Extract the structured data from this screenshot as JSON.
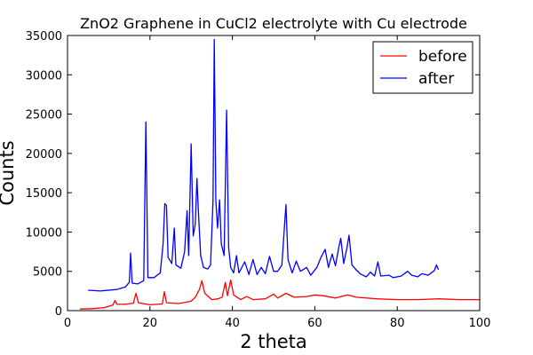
{
  "chart_data": {
    "type": "line",
    "title": "ZnO2 Graphene in CuCl2 electrolyte with Cu electrode",
    "xlabel": "2 theta",
    "ylabel": "Counts",
    "xlim": [
      0,
      100
    ],
    "ylim": [
      0,
      35000
    ],
    "x_ticks": [
      0,
      20,
      40,
      60,
      80,
      100
    ],
    "y_ticks": [
      0,
      5000,
      10000,
      15000,
      20000,
      25000,
      30000,
      35000
    ],
    "grid": false,
    "legend": "top-right",
    "series": [
      {
        "name": "before",
        "color": "#ff0000",
        "points": [
          [
            3,
            200
          ],
          [
            6,
            250
          ],
          [
            9,
            400
          ],
          [
            11,
            700
          ],
          [
            11.5,
            1300
          ],
          [
            12,
            800
          ],
          [
            14,
            800
          ],
          [
            16,
            950
          ],
          [
            16.6,
            2200
          ],
          [
            17.2,
            1000
          ],
          [
            20,
            750
          ],
          [
            23,
            850
          ],
          [
            23.5,
            2400
          ],
          [
            24,
            1000
          ],
          [
            27,
            900
          ],
          [
            30,
            1200
          ],
          [
            31,
            1700
          ],
          [
            32,
            2700
          ],
          [
            32.6,
            3800
          ],
          [
            33.3,
            2200
          ],
          [
            35,
            1400
          ],
          [
            36.5,
            1500
          ],
          [
            37.5,
            1700
          ],
          [
            38.3,
            3600
          ],
          [
            38.8,
            1900
          ],
          [
            39.6,
            3900
          ],
          [
            40.3,
            2000
          ],
          [
            42,
            1400
          ],
          [
            43.5,
            1800
          ],
          [
            45,
            1400
          ],
          [
            48,
            1500
          ],
          [
            50,
            2100
          ],
          [
            51,
            1600
          ],
          [
            53,
            2200
          ],
          [
            55,
            1700
          ],
          [
            58,
            1800
          ],
          [
            60,
            2000
          ],
          [
            62,
            1900
          ],
          [
            65,
            1600
          ],
          [
            68,
            2000
          ],
          [
            70,
            1700
          ],
          [
            75,
            1500
          ],
          [
            80,
            1400
          ],
          [
            85,
            1400
          ],
          [
            90,
            1500
          ],
          [
            95,
            1400
          ],
          [
            100,
            1400
          ]
        ]
      },
      {
        "name": "after",
        "color": "#0000ff",
        "points": [
          [
            5,
            2600
          ],
          [
            8,
            2500
          ],
          [
            12,
            2700
          ],
          [
            14,
            3000
          ],
          [
            15,
            3600
          ],
          [
            15.3,
            7300
          ],
          [
            15.7,
            3500
          ],
          [
            17,
            3400
          ],
          [
            18.5,
            3800
          ],
          [
            19,
            24000
          ],
          [
            19.5,
            4200
          ],
          [
            21,
            4200
          ],
          [
            22.5,
            4800
          ],
          [
            23.2,
            8500
          ],
          [
            23.6,
            13600
          ],
          [
            24,
            13400
          ],
          [
            24.4,
            6800
          ],
          [
            25.3,
            6000
          ],
          [
            25.9,
            10500
          ],
          [
            26.3,
            5800
          ],
          [
            27.5,
            5400
          ],
          [
            28.4,
            7500
          ],
          [
            29,
            12700
          ],
          [
            29.4,
            7000
          ],
          [
            30,
            21200
          ],
          [
            30.5,
            9500
          ],
          [
            31,
            11000
          ],
          [
            31.4,
            16800
          ],
          [
            31.8,
            12000
          ],
          [
            32.3,
            7000
          ],
          [
            33,
            5500
          ],
          [
            34,
            5300
          ],
          [
            34.7,
            5800
          ],
          [
            35.3,
            14000
          ],
          [
            35.6,
            34500
          ],
          [
            36,
            14000
          ],
          [
            36.4,
            10500
          ],
          [
            36.9,
            14100
          ],
          [
            37.3,
            8500
          ],
          [
            38,
            7000
          ],
          [
            38.6,
            25500
          ],
          [
            39.1,
            8000
          ],
          [
            39.6,
            5500
          ],
          [
            40.3,
            4800
          ],
          [
            41,
            7000
          ],
          [
            41.6,
            4800
          ],
          [
            43,
            6200
          ],
          [
            44,
            4600
          ],
          [
            45,
            6500
          ],
          [
            46,
            4600
          ],
          [
            47,
            5500
          ],
          [
            48,
            4700
          ],
          [
            49,
            6900
          ],
          [
            50,
            5000
          ],
          [
            51,
            5000
          ],
          [
            52,
            5800
          ],
          [
            53,
            13500
          ],
          [
            53.5,
            6500
          ],
          [
            54.5,
            4800
          ],
          [
            55.5,
            6300
          ],
          [
            56.5,
            5000
          ],
          [
            58,
            5500
          ],
          [
            59,
            4500
          ],
          [
            60.5,
            5500
          ],
          [
            61.5,
            6800
          ],
          [
            62.5,
            7800
          ],
          [
            63.3,
            5500
          ],
          [
            64.2,
            7200
          ],
          [
            65,
            5700
          ],
          [
            65.8,
            8000
          ],
          [
            66.3,
            9200
          ],
          [
            67,
            6000
          ],
          [
            67.8,
            8000
          ],
          [
            68.3,
            9600
          ],
          [
            69,
            5800
          ],
          [
            70,
            5200
          ],
          [
            71,
            4700
          ],
          [
            72.5,
            4300
          ],
          [
            73.5,
            4900
          ],
          [
            74.5,
            4400
          ],
          [
            75.3,
            6200
          ],
          [
            76,
            4400
          ],
          [
            78,
            4500
          ],
          [
            79,
            4200
          ],
          [
            81,
            4400
          ],
          [
            82.5,
            5000
          ],
          [
            83.5,
            4500
          ],
          [
            85,
            4300
          ],
          [
            86,
            4700
          ],
          [
            87.5,
            4500
          ],
          [
            89,
            5100
          ],
          [
            89.5,
            5800
          ],
          [
            90,
            5200
          ]
        ]
      }
    ]
  }
}
